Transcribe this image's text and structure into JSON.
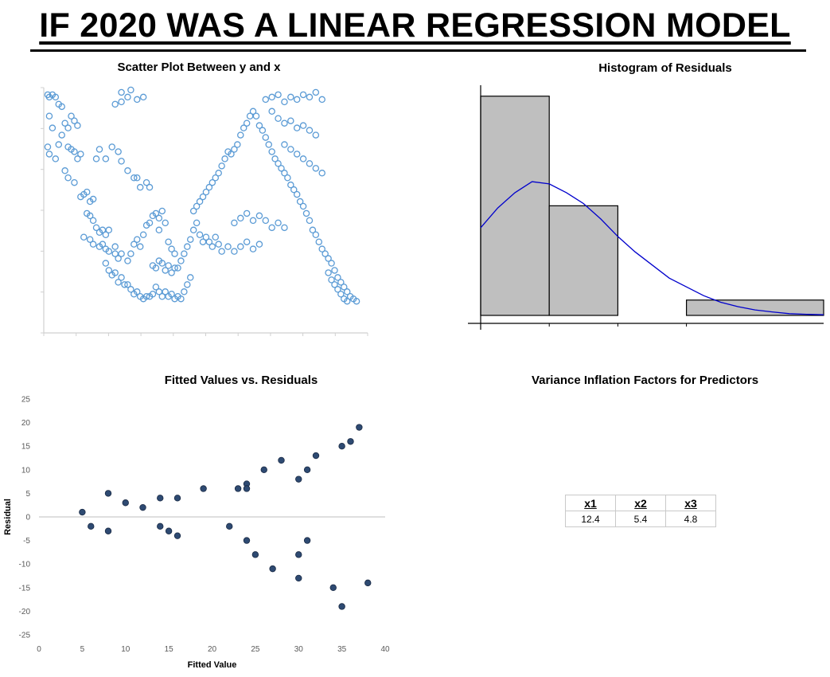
{
  "page": {
    "title": "IF 2020 WAS A LINEAR REGRESSION MODEL"
  },
  "chart_data": [
    {
      "id": "scatter",
      "type": "scatter",
      "title": "Scatter Plot Between y and x",
      "marker": "hollow-circle",
      "color": "#5b9bd5",
      "xlim": [
        0,
        100
      ],
      "ylim": [
        0,
        100
      ],
      "points": [
        [
          0.5,
          97
        ],
        [
          1,
          96
        ],
        [
          2,
          97
        ],
        [
          3,
          96
        ],
        [
          4,
          93
        ],
        [
          5,
          92
        ],
        [
          1,
          88
        ],
        [
          2,
          83
        ],
        [
          0.5,
          75
        ],
        [
          1,
          72
        ],
        [
          3,
          70
        ],
        [
          4,
          76
        ],
        [
          5,
          80
        ],
        [
          6,
          85
        ],
        [
          7,
          83
        ],
        [
          8,
          88
        ],
        [
          9,
          86
        ],
        [
          10,
          84
        ],
        [
          7,
          75
        ],
        [
          8,
          74
        ],
        [
          9,
          73
        ],
        [
          10,
          70
        ],
        [
          11,
          72
        ],
        [
          6,
          65
        ],
        [
          7,
          62
        ],
        [
          9,
          60
        ],
        [
          11,
          54
        ],
        [
          12,
          55
        ],
        [
          13,
          56
        ],
        [
          14,
          52
        ],
        [
          15,
          53
        ],
        [
          16,
          70
        ],
        [
          17,
          74
        ],
        [
          19,
          70
        ],
        [
          21,
          75
        ],
        [
          23,
          73
        ],
        [
          24,
          69
        ],
        [
          26,
          65
        ],
        [
          28,
          62
        ],
        [
          29,
          62
        ],
        [
          30,
          58
        ],
        [
          32,
          60
        ],
        [
          33,
          58
        ],
        [
          22,
          93
        ],
        [
          24,
          94
        ],
        [
          24,
          98
        ],
        [
          26,
          96
        ],
        [
          27,
          99
        ],
        [
          29,
          95
        ],
        [
          31,
          96
        ],
        [
          13,
          47
        ],
        [
          14,
          46
        ],
        [
          15,
          44
        ],
        [
          16,
          41
        ],
        [
          17,
          39
        ],
        [
          18,
          40
        ],
        [
          19,
          38
        ],
        [
          20,
          40
        ],
        [
          12,
          37
        ],
        [
          14,
          36
        ],
        [
          15,
          34
        ],
        [
          17,
          33
        ],
        [
          18,
          34
        ],
        [
          19,
          32
        ],
        [
          20,
          31
        ],
        [
          22,
          33
        ],
        [
          22,
          30
        ],
        [
          23,
          28
        ],
        [
          24,
          30
        ],
        [
          26,
          27
        ],
        [
          27,
          30
        ],
        [
          28,
          34
        ],
        [
          29,
          36
        ],
        [
          30,
          33
        ],
        [
          31,
          38
        ],
        [
          32,
          42
        ],
        [
          33,
          43
        ],
        [
          34,
          46
        ],
        [
          35,
          47
        ],
        [
          36,
          45
        ],
        [
          37,
          48
        ],
        [
          38,
          43
        ],
        [
          36,
          40
        ],
        [
          39,
          35
        ],
        [
          40,
          32
        ],
        [
          41,
          30
        ],
        [
          19,
          26
        ],
        [
          20,
          23
        ],
        [
          21,
          21
        ],
        [
          22,
          22
        ],
        [
          23,
          18
        ],
        [
          24,
          20
        ],
        [
          25,
          17
        ],
        [
          26,
          17
        ],
        [
          27,
          15
        ],
        [
          28,
          13
        ],
        [
          29,
          14
        ],
        [
          30,
          12
        ],
        [
          31,
          11
        ],
        [
          32,
          12
        ],
        [
          33,
          12
        ],
        [
          34,
          13
        ],
        [
          35,
          16
        ],
        [
          36,
          14
        ],
        [
          37,
          12
        ],
        [
          38,
          14
        ],
        [
          39,
          12
        ],
        [
          40,
          13
        ],
        [
          41,
          11
        ],
        [
          42,
          12
        ],
        [
          43,
          11
        ],
        [
          44,
          14
        ],
        [
          45,
          17
        ],
        [
          46,
          20
        ],
        [
          42,
          24
        ],
        [
          43,
          27
        ],
        [
          44,
          30
        ],
        [
          45,
          33
        ],
        [
          46,
          36
        ],
        [
          47,
          40
        ],
        [
          48,
          43
        ],
        [
          47,
          48
        ],
        [
          48,
          50
        ],
        [
          49,
          52
        ],
        [
          50,
          54
        ],
        [
          51,
          56
        ],
        [
          52,
          58
        ],
        [
          53,
          60
        ],
        [
          54,
          62
        ],
        [
          55,
          64
        ],
        [
          56,
          67
        ],
        [
          57,
          70
        ],
        [
          58,
          73
        ],
        [
          59,
          72
        ],
        [
          60,
          74
        ],
        [
          61,
          76
        ],
        [
          62,
          80
        ],
        [
          63,
          83
        ],
        [
          64,
          85
        ],
        [
          65,
          88
        ],
        [
          66,
          90
        ],
        [
          67,
          88
        ],
        [
          68,
          84
        ],
        [
          69,
          82
        ],
        [
          70,
          79
        ],
        [
          71,
          76
        ],
        [
          72,
          73
        ],
        [
          73,
          70
        ],
        [
          74,
          68
        ],
        [
          75,
          66
        ],
        [
          76,
          64
        ],
        [
          77,
          62
        ],
        [
          78,
          59
        ],
        [
          79,
          57
        ],
        [
          80,
          55
        ],
        [
          81,
          52
        ],
        [
          82,
          50
        ],
        [
          83,
          47
        ],
        [
          84,
          44
        ],
        [
          85,
          40
        ],
        [
          86,
          38
        ],
        [
          87,
          35
        ],
        [
          88,
          32
        ],
        [
          89,
          30
        ],
        [
          90,
          28
        ],
        [
          91,
          26
        ],
        [
          92,
          23
        ],
        [
          93,
          20
        ],
        [
          94,
          18
        ],
        [
          95,
          16
        ],
        [
          96,
          14
        ],
        [
          97,
          12
        ],
        [
          98,
          11
        ],
        [
          99,
          10
        ],
        [
          90,
          22
        ],
        [
          91,
          19
        ],
        [
          92,
          17
        ],
        [
          93,
          15
        ],
        [
          94,
          13
        ],
        [
          95,
          11
        ],
        [
          96,
          10
        ],
        [
          70,
          95
        ],
        [
          72,
          96
        ],
        [
          74,
          97
        ],
        [
          76,
          94
        ],
        [
          78,
          96
        ],
        [
          80,
          95
        ],
        [
          82,
          97
        ],
        [
          84,
          96
        ],
        [
          86,
          98
        ],
        [
          88,
          95
        ],
        [
          72,
          90
        ],
        [
          74,
          87
        ],
        [
          76,
          85
        ],
        [
          78,
          86
        ],
        [
          80,
          83
        ],
        [
          82,
          84
        ],
        [
          84,
          82
        ],
        [
          86,
          80
        ],
        [
          76,
          76
        ],
        [
          78,
          74
        ],
        [
          80,
          72
        ],
        [
          82,
          70
        ],
        [
          84,
          68
        ],
        [
          86,
          66
        ],
        [
          88,
          64
        ],
        [
          60,
          43
        ],
        [
          62,
          45
        ],
        [
          64,
          47
        ],
        [
          66,
          44
        ],
        [
          68,
          46
        ],
        [
          70,
          44
        ],
        [
          72,
          41
        ],
        [
          74,
          43
        ],
        [
          76,
          41
        ],
        [
          58,
          33
        ],
        [
          60,
          31
        ],
        [
          62,
          33
        ],
        [
          64,
          35
        ],
        [
          66,
          32
        ],
        [
          68,
          34
        ],
        [
          56,
          31
        ],
        [
          55,
          34
        ],
        [
          54,
          37
        ],
        [
          53,
          33
        ],
        [
          52,
          35
        ],
        [
          51,
          37
        ],
        [
          50,
          35
        ],
        [
          49,
          38
        ],
        [
          34,
          25
        ],
        [
          35,
          24
        ],
        [
          36,
          27
        ],
        [
          37,
          26
        ],
        [
          38,
          23
        ],
        [
          39,
          25
        ],
        [
          40,
          22
        ],
        [
          41,
          24
        ]
      ]
    },
    {
      "id": "histogram",
      "type": "bar",
      "title": "Histogram of Residuals",
      "bins": [
        [
          0,
          1
        ],
        [
          1,
          2
        ],
        [
          2,
          3
        ],
        [
          3,
          5
        ]
      ],
      "values": [
        100,
        50,
        0,
        7
      ],
      "bar_color": "#bfbfbf",
      "curve_color": "#0000cc",
      "xlim": [
        0,
        5
      ],
      "ylim": [
        0,
        105
      ],
      "curve": [
        [
          0,
          40
        ],
        [
          0.25,
          49
        ],
        [
          0.5,
          56
        ],
        [
          0.75,
          61
        ],
        [
          1,
          60
        ],
        [
          1.25,
          56
        ],
        [
          1.5,
          51
        ],
        [
          1.75,
          44
        ],
        [
          2,
          36
        ],
        [
          2.25,
          29
        ],
        [
          2.5,
          23
        ],
        [
          2.75,
          17
        ],
        [
          3,
          13
        ],
        [
          3.25,
          9
        ],
        [
          3.5,
          6
        ],
        [
          3.75,
          4
        ],
        [
          4,
          2.5
        ],
        [
          4.25,
          1.6
        ],
        [
          4.5,
          0.8
        ],
        [
          4.75,
          0.5
        ],
        [
          5,
          0.3
        ]
      ]
    },
    {
      "id": "residuals",
      "type": "scatter",
      "title": "Fitted Values vs. Residuals",
      "xlabel": "Fitted Value",
      "ylabel": "Residual",
      "xlim": [
        0,
        40
      ],
      "ylim": [
        -25,
        25
      ],
      "x_ticks": [
        0,
        5,
        10,
        15,
        20,
        25,
        30,
        35,
        40
      ],
      "y_ticks": [
        25,
        20,
        15,
        10,
        5,
        0,
        -5,
        -10,
        -15,
        -20,
        -25
      ],
      "marker_color": "#2e4a72",
      "points": [
        [
          5,
          1
        ],
        [
          6,
          -2
        ],
        [
          8,
          5
        ],
        [
          8,
          -3
        ],
        [
          10,
          3
        ],
        [
          12,
          2
        ],
        [
          14,
          4
        ],
        [
          14,
          -2
        ],
        [
          15,
          -3
        ],
        [
          16,
          4
        ],
        [
          16,
          -4
        ],
        [
          19,
          6
        ],
        [
          22,
          -2
        ],
        [
          23,
          6
        ],
        [
          24,
          7
        ],
        [
          24,
          6
        ],
        [
          24,
          -5
        ],
        [
          25,
          -8
        ],
        [
          26,
          10
        ],
        [
          27,
          -11
        ],
        [
          28,
          12
        ],
        [
          30,
          8
        ],
        [
          30,
          -8
        ],
        [
          30,
          -13
        ],
        [
          31,
          10
        ],
        [
          31,
          -5
        ],
        [
          32,
          13
        ],
        [
          34,
          -15
        ],
        [
          35,
          15
        ],
        [
          35,
          -19
        ],
        [
          36,
          16
        ],
        [
          37,
          19
        ],
        [
          38,
          -14
        ]
      ]
    }
  ],
  "vif": {
    "title": "Variance Inflation Factors for Predictors",
    "headers": [
      "x1",
      "x2",
      "x3"
    ],
    "values": [
      "12.4",
      "5.4",
      "4.8"
    ]
  }
}
